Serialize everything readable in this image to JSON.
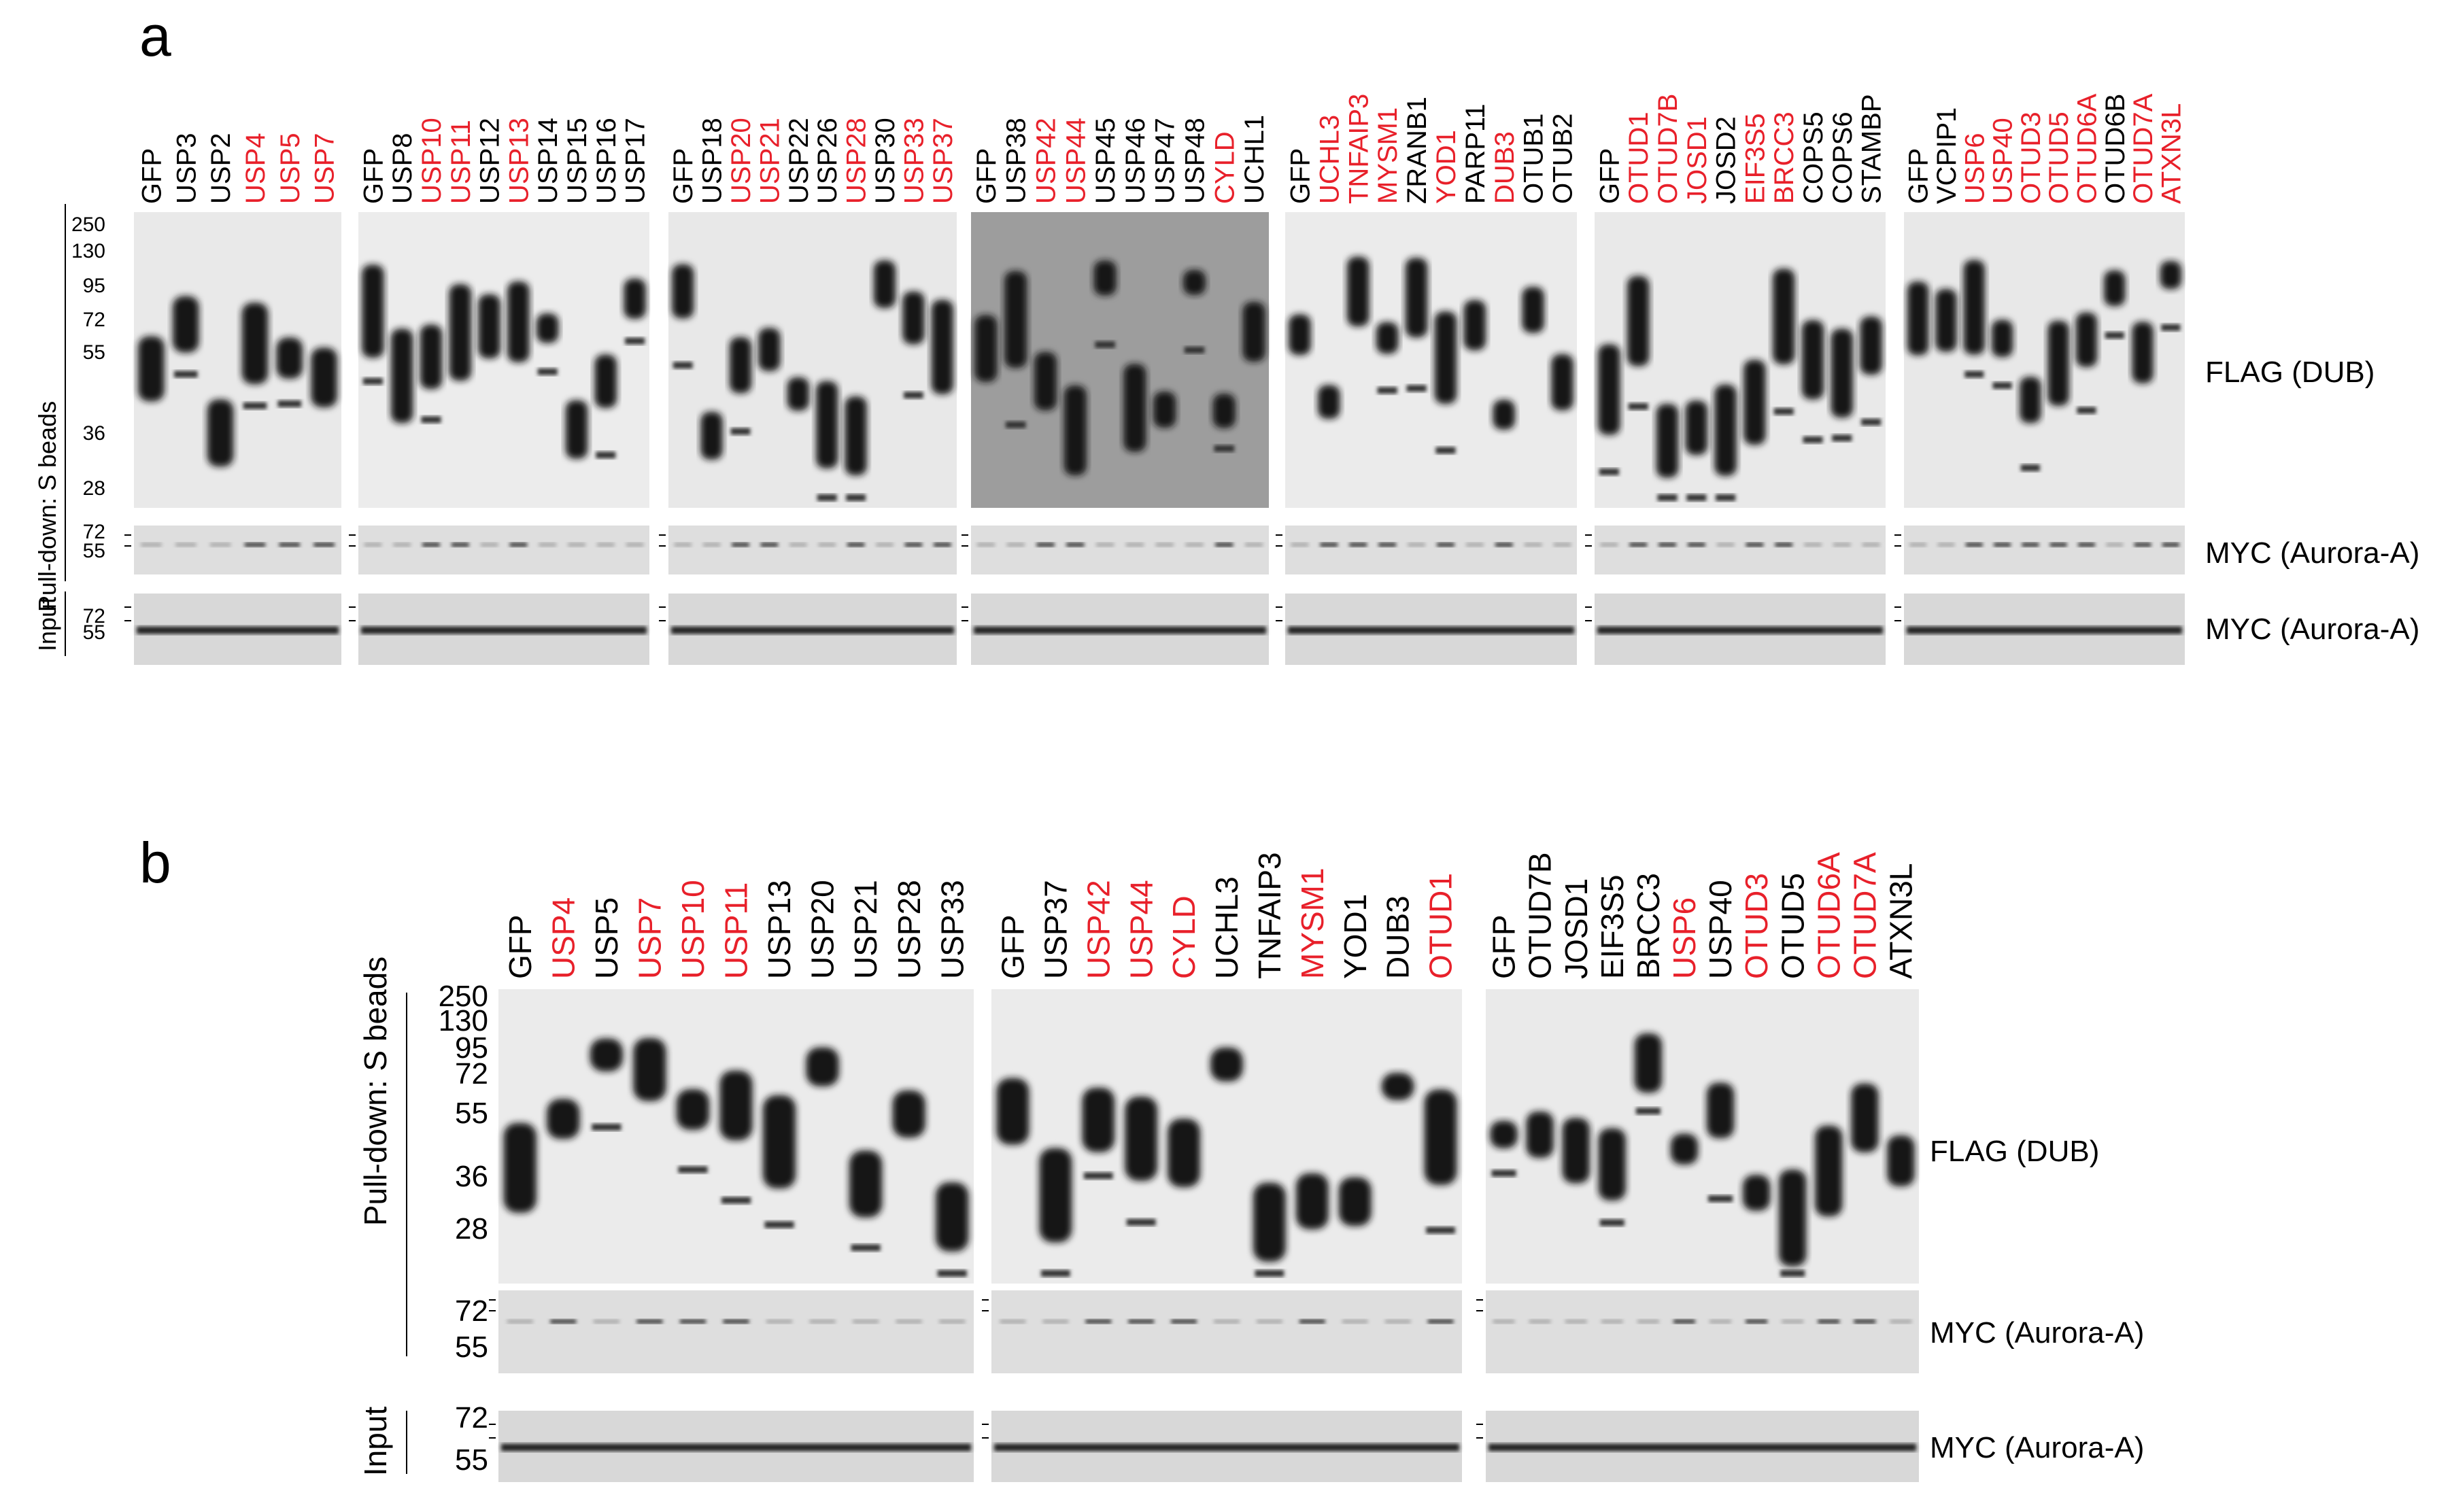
{
  "colors": {
    "highlight": "#e8202a",
    "text": "#000000"
  },
  "panel_a": {
    "letter": "a",
    "axis_label": "Pull-down: S beads",
    "input_label": "Input",
    "right_labels": [
      "FLAG (DUB)",
      "MYC (Aurora-A)",
      "MYC (Aurora-A)"
    ],
    "mw_flag": [
      "250",
      "130",
      "95",
      "72",
      "55",
      "36",
      "28"
    ],
    "mw_myc": [
      "72",
      "55"
    ],
    "mw_input": [
      "72",
      "55"
    ],
    "groups": [
      {
        "lanes": [
          {
            "t": "GFP",
            "r": false
          },
          {
            "t": "USP3",
            "r": false
          },
          {
            "t": "USP2",
            "r": false
          },
          {
            "t": "USP4",
            "r": true
          },
          {
            "t": "USP5",
            "r": true
          },
          {
            "t": "USP7",
            "r": true
          }
        ]
      },
      {
        "lanes": [
          {
            "t": "GFP",
            "r": false
          },
          {
            "t": "USP8",
            "r": false
          },
          {
            "t": "USP10",
            "r": true
          },
          {
            "t": "USP11",
            "r": true
          },
          {
            "t": "USP12",
            "r": false
          },
          {
            "t": "USP13",
            "r": true
          },
          {
            "t": "USP14",
            "r": false
          },
          {
            "t": "USP15",
            "r": false
          },
          {
            "t": "USP16",
            "r": false
          },
          {
            "t": "USP17",
            "r": false
          }
        ]
      },
      {
        "lanes": [
          {
            "t": "GFP",
            "r": false
          },
          {
            "t": "USP18",
            "r": false
          },
          {
            "t": "USP20",
            "r": true
          },
          {
            "t": "USP21",
            "r": true
          },
          {
            "t": "USP22",
            "r": false
          },
          {
            "t": "USP26",
            "r": false
          },
          {
            "t": "USP28",
            "r": true
          },
          {
            "t": "USP30",
            "r": false
          },
          {
            "t": "USP33",
            "r": true
          },
          {
            "t": "USP37",
            "r": true
          }
        ]
      },
      {
        "lanes": [
          {
            "t": "GFP",
            "r": false
          },
          {
            "t": "USP38",
            "r": false
          },
          {
            "t": "USP42",
            "r": true
          },
          {
            "t": "USP44",
            "r": true
          },
          {
            "t": "USP45",
            "r": false
          },
          {
            "t": "USP46",
            "r": false
          },
          {
            "t": "USP47",
            "r": false
          },
          {
            "t": "USP48",
            "r": false
          },
          {
            "t": "CYLD",
            "r": true
          },
          {
            "t": "UCHL1",
            "r": false
          }
        ]
      },
      {
        "lanes": [
          {
            "t": "GFP",
            "r": false
          },
          {
            "t": "UCHL3",
            "r": true
          },
          {
            "t": "TNFAIP3",
            "r": true
          },
          {
            "t": "MYSM1",
            "r": true
          },
          {
            "t": "ZRANB1",
            "r": false
          },
          {
            "t": "YOD1",
            "r": true
          },
          {
            "t": "PARP11",
            "r": false
          },
          {
            "t": "DUB3",
            "r": true
          },
          {
            "t": "OTUB1",
            "r": false
          },
          {
            "t": "OTUB2",
            "r": false
          }
        ]
      },
      {
        "lanes": [
          {
            "t": "GFP",
            "r": false
          },
          {
            "t": "OTUD1",
            "r": true
          },
          {
            "t": "OTUD7B",
            "r": true
          },
          {
            "t": "JOSD1",
            "r": true
          },
          {
            "t": "JOSD2",
            "r": false
          },
          {
            "t": "EIF3S5",
            "r": true
          },
          {
            "t": "BRCC3",
            "r": true
          },
          {
            "t": "COPS5",
            "r": false
          },
          {
            "t": "COPS6",
            "r": false
          },
          {
            "t": "STAMBP",
            "r": false
          }
        ]
      },
      {
        "lanes": [
          {
            "t": "GFP",
            "r": false
          },
          {
            "t": "VCPIP1",
            "r": false
          },
          {
            "t": "USP6",
            "r": true
          },
          {
            "t": "USP40",
            "r": true
          },
          {
            "t": "OTUD3",
            "r": true
          },
          {
            "t": "OTUD5",
            "r": true
          },
          {
            "t": "OTUD6A",
            "r": true
          },
          {
            "t": "OTUD6B",
            "r": false
          },
          {
            "t": "OTUD7A",
            "r": true
          },
          {
            "t": "ATXN3L",
            "r": true
          }
        ]
      }
    ]
  },
  "panel_b": {
    "letter": "b",
    "axis_label": "Pull-down: S beads",
    "input_label": "Input",
    "right_labels": [
      "FLAG (DUB)",
      "MYC (Aurora-A)",
      "MYC (Aurora-A)"
    ],
    "mw_flag": [
      "250",
      "130",
      "95",
      "72",
      "55",
      "36",
      "28"
    ],
    "mw_myc": [
      "72",
      "55"
    ],
    "mw_input": [
      "72",
      "55"
    ],
    "groups": [
      {
        "lanes": [
          {
            "t": "GFP",
            "r": false
          },
          {
            "t": "USP4",
            "r": true
          },
          {
            "t": "USP5",
            "r": false
          },
          {
            "t": "USP7",
            "r": true
          },
          {
            "t": "USP10",
            "r": true
          },
          {
            "t": "USP11",
            "r": true
          },
          {
            "t": "USP13",
            "r": false
          },
          {
            "t": "USP20",
            "r": false
          },
          {
            "t": "USP21",
            "r": false
          },
          {
            "t": "USP28",
            "r": false
          },
          {
            "t": "USP33",
            "r": false
          }
        ]
      },
      {
        "lanes": [
          {
            "t": "GFP",
            "r": false
          },
          {
            "t": "USP37",
            "r": false
          },
          {
            "t": "USP42",
            "r": true
          },
          {
            "t": "USP44",
            "r": true
          },
          {
            "t": "CYLD",
            "r": true
          },
          {
            "t": "UCHL3",
            "r": false
          },
          {
            "t": "TNFAIP3",
            "r": false
          },
          {
            "t": "MYSM1",
            "r": true
          },
          {
            "t": "YOD1",
            "r": false
          },
          {
            "t": "DUB3",
            "r": false
          },
          {
            "t": "OTUD1",
            "r": true
          }
        ]
      },
      {
        "lanes": [
          {
            "t": "GFP",
            "r": false
          },
          {
            "t": "OTUD7B",
            "r": false
          },
          {
            "t": "JOSD1",
            "r": false
          },
          {
            "t": "EIF3S5",
            "r": false
          },
          {
            "t": "BRCC3",
            "r": false
          },
          {
            "t": "USP6",
            "r": true
          },
          {
            "t": "USP40",
            "r": false
          },
          {
            "t": "OTUD3",
            "r": true
          },
          {
            "t": "OTUD5",
            "r": false
          },
          {
            "t": "OTUD6A",
            "r": true
          },
          {
            "t": "OTUD7A",
            "r": true
          },
          {
            "t": "ATXN3L",
            "r": false
          }
        ]
      }
    ]
  }
}
